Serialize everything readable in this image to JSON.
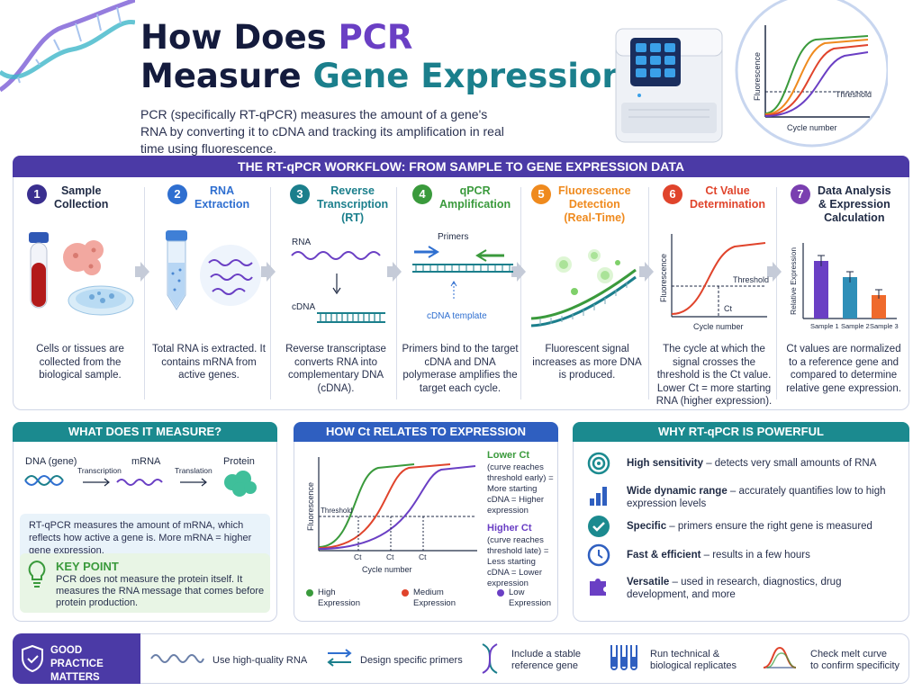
{
  "header": {
    "title_line1_a": "How Does ",
    "title_line1_b": "PCR",
    "title_line2_a": "Measure ",
    "title_line2_b": "Gene Expression",
    "title_line2_c": "?",
    "subtitle": "PCR (specifically RT-qPCR) measures the amount of a gene's RNA by converting it to cDNA and tracking its amplification in real time using fluorescence.",
    "inset_chart": {
      "ylabel": "Fluorescence",
      "xlabel": "Cycle number",
      "threshold_label": "Threshold"
    }
  },
  "workflow": {
    "banner": "THE RT-qPCR WORKFLOW: FROM SAMPLE TO GENE EXPRESSION DATA",
    "steps": [
      {
        "num": "1",
        "title": "Sample\nCollection",
        "desc": "Cells or tissues are collected from the biological sample.",
        "color": "#3a2f8f"
      },
      {
        "num": "2",
        "title": "RNA\nExtraction",
        "desc": "Total RNA is extracted. It contains mRNA from active genes.",
        "color": "#2f6fd0"
      },
      {
        "num": "3",
        "title": "Reverse\nTranscription\n(RT)",
        "desc": "Reverse transcriptase converts RNA into complementary DNA (cDNA).",
        "color": "#1b7f8c"
      },
      {
        "num": "4",
        "title": "qPCR\nAmplification",
        "desc": "Primers bind to the target cDNA and DNA polymerase amplifies the target each cycle.",
        "color": "#3a9a3c"
      },
      {
        "num": "5",
        "title": "Fluorescence\nDetection\n(Real-Time)",
        "desc": "Fluorescent signal increases as more DNA is produced.",
        "color": "#ef8a1e"
      },
      {
        "num": "6",
        "title": "Ct Value\nDetermination",
        "desc": "The cycle at which the signal crosses the threshold is the Ct value. Lower Ct = more starting RNA (higher expression).",
        "color": "#e0442c"
      },
      {
        "num": "7",
        "title": "Data Analysis\n& Expression\nCalculation",
        "desc": "Ct values are normalized to a reference gene and compared to determine relative gene expression.",
        "color": "#7a3fb0"
      }
    ],
    "step3_labels": {
      "rna": "RNA",
      "cdna": "cDNA"
    },
    "step4_labels": {
      "primers": "Primers",
      "template": "cDNA template"
    },
    "step6_chart": {
      "ylabel": "Fluorescence",
      "xlabel": "Cycle number",
      "threshold": "Threshold",
      "ct": "Ct"
    },
    "step7_chart": {
      "ylabel": "Relative Expression",
      "categories": [
        "Sample 1",
        "Sample 2",
        "Sample 3"
      ]
    }
  },
  "measure": {
    "header": "WHAT DOES IT MEASURE?",
    "dna": "DNA (gene)",
    "mrna": "mRNA",
    "protein": "Protein",
    "transcription": "Transcription",
    "translation": "Translation",
    "note": "RT-qPCR measures the amount of mRNA, which reflects how active a gene is. More mRNA = higher gene expression.",
    "key_title": "KEY POINT",
    "key_text": "PCR does not measure the protein itself. It measures the RNA message that comes before protein production."
  },
  "ct_panel": {
    "header": "HOW Ct RELATES TO EXPRESSION",
    "ylabel": "Fluorescence",
    "xlabel": "Cycle number",
    "threshold": "Threshold",
    "ct": "Ct",
    "lower_title": "Lower Ct",
    "lower_text": "(curve reaches threshold early) = More starting cDNA = Higher expression",
    "higher_title": "Higher Ct",
    "higher_text": "(curve reaches threshold late) = Less starting cDNA = Lower expression",
    "legend": [
      {
        "label": "High\nExpression",
        "color": "#3a9a3c"
      },
      {
        "label": "Medium\nExpression",
        "color": "#e0442c"
      },
      {
        "label": "Low\nExpression",
        "color": "#6a3fc4"
      }
    ]
  },
  "why": {
    "header": "WHY RT-qPCR IS POWERFUL",
    "items": [
      {
        "icon": "target-icon",
        "bold": "High sensitivity",
        "text": " – detects very small amounts of RNA"
      },
      {
        "icon": "bar-chart-icon",
        "bold": "Wide dynamic range",
        "text": " – accurately quantifies low to high expression levels"
      },
      {
        "icon": "check-circle-icon",
        "bold": "Specific",
        "text": " – primers ensure the right gene is measured"
      },
      {
        "icon": "clock-icon",
        "bold": "Fast & efficient",
        "text": " – results in a few hours"
      },
      {
        "icon": "puzzle-icon",
        "bold": "Versatile",
        "text": " – used in research, diagnostics, drug development, and more"
      }
    ]
  },
  "footer": {
    "badge": "GOOD PRACTICE\nMATTERS",
    "items": [
      {
        "text": "Use high-quality RNA"
      },
      {
        "text": "Design specific primers"
      },
      {
        "text": "Include a stable\nreference gene"
      },
      {
        "text": "Run technical &\nbiological replicates"
      },
      {
        "text": "Check melt curve\nto confirm specificity"
      }
    ]
  },
  "colors": {
    "banner": "#4b3aa6",
    "measure_head": "#1b8a8f",
    "ct_head": "#2f5fc0",
    "why_head": "#1b8a8f",
    "footer_badge": "#4b3aa6"
  }
}
